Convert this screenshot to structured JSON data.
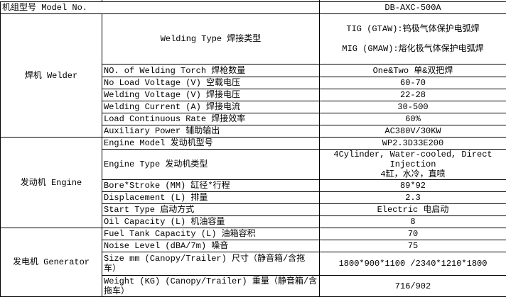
{
  "model_row": {
    "label": "机组型号 Model No.",
    "value": "DB-AXC-500A"
  },
  "sections": [
    {
      "name": "焊机 Welder",
      "rows": [
        {
          "label": "Welding Type 焊接类型",
          "value_lines": [
            "TIG (GTAW):钨极气体保护电弧焊",
            "",
            "MIG (GMAW):熔化极气体保护电弧焊"
          ]
        },
        {
          "label": "NO. of Welding Torch 焊枪数量",
          "value_lines": [
            "One&Two 单&双把焊"
          ]
        },
        {
          "label": "No Load Voltage (V) 空载电压",
          "value_lines": [
            "60-70"
          ]
        },
        {
          "label": "Welding Voltage  (V) 焊接电压",
          "value_lines": [
            "22-28"
          ]
        },
        {
          "label": "Welding Current  (A) 焊接电流",
          "value_lines": [
            "30-500"
          ]
        },
        {
          "label": "Load Continuous Rate 焊接效率",
          "value_lines": [
            "60%"
          ]
        },
        {
          "label": "Auxiliary Power 辅助输出",
          "value_lines": [
            "AC380V/30KW"
          ]
        }
      ]
    },
    {
      "name": "发动机 Engine",
      "rows": [
        {
          "label": "Engine Model 发动机型号",
          "value_lines": [
            "WP2.3D33E200"
          ]
        },
        {
          "label": "Engine Type 发动机类型",
          "value_lines": [
            "4Cylinder, Water-cooled, Direct Injection",
            "4缸，水冷，直喷"
          ]
        },
        {
          "label": "Bore*Stroke (MM) 缸径*行程",
          "value_lines": [
            "89*92"
          ]
        },
        {
          "label": "Displacement (L) 排量",
          "value_lines": [
            "2.3"
          ]
        },
        {
          "label": "Start Type 启动方式",
          "value_lines": [
            "Electric 电启动"
          ]
        },
        {
          "label": "Oil Capacity (L) 机油容量",
          "value_lines": [
            "8"
          ]
        }
      ]
    },
    {
      "name": "发电机 Generator",
      "rows": [
        {
          "label": "Fuel Tank Capacity (L) 油箱容积",
          "value_lines": [
            "70"
          ]
        },
        {
          "label": "Noise Level (dBA/7m) 噪音",
          "value_lines": [
            "75"
          ]
        },
        {
          "label": "Size mm (Canopy/Trailer) 尺寸（静音箱/含拖车）",
          "value_lines": [
            "1800*900*1100 /2340*1210*1800"
          ]
        },
        {
          "label": "Weight (KG) (Canopy/Trailer) 重量（静音箱/含拖车）",
          "value_lines": [
            "716/902"
          ]
        }
      ]
    }
  ]
}
